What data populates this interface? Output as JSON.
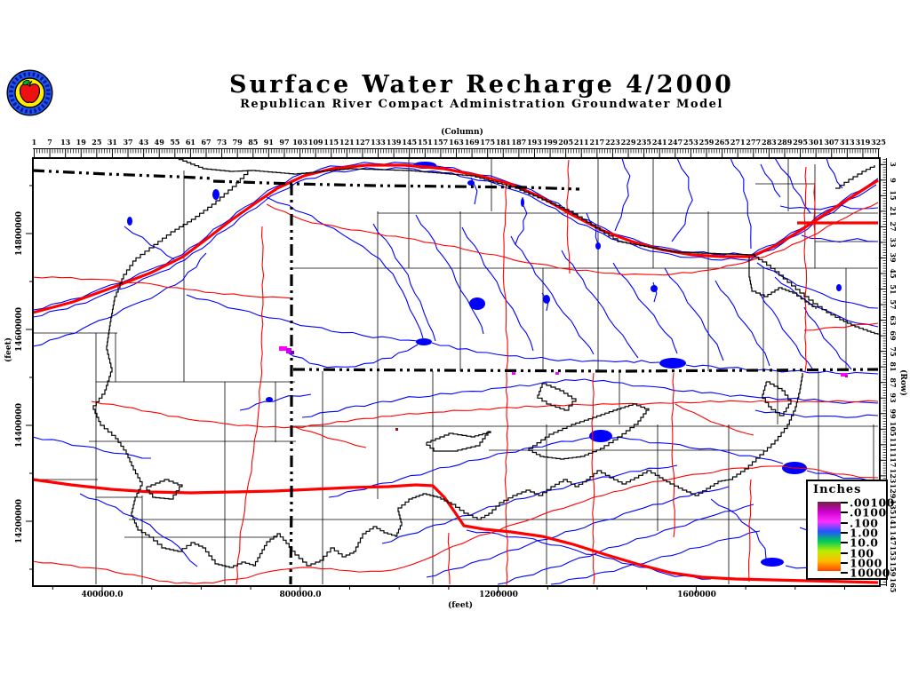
{
  "header": {
    "title": "Surface Water Recharge 4/2000",
    "subtitle": "Republican River Compact Administration Groundwater Model"
  },
  "logo": {
    "name": "rrca-apple-seal"
  },
  "axes": {
    "column": {
      "label": "(Column)",
      "ticks": [
        1,
        7,
        13,
        19,
        25,
        31,
        37,
        43,
        49,
        55,
        61,
        67,
        73,
        79,
        85,
        91,
        97,
        103,
        109,
        115,
        121,
        127,
        133,
        139,
        145,
        151,
        157,
        163,
        169,
        175,
        181,
        187,
        193,
        199,
        205,
        211,
        217,
        223,
        229,
        235,
        241,
        247,
        253,
        259,
        265,
        271,
        277,
        283,
        289,
        295,
        301,
        307,
        313,
        319,
        325
      ]
    },
    "row": {
      "label": "(Row)",
      "ticks": [
        3,
        9,
        15,
        21,
        27,
        33,
        39,
        45,
        51,
        57,
        63,
        69,
        75,
        81,
        87,
        93,
        99,
        105,
        111,
        117,
        123,
        129,
        135,
        141,
        147,
        153,
        159,
        165
      ]
    },
    "left": {
      "label": "(feet)",
      "ticks": [
        "14800000",
        "14600000",
        "14400000",
        "14200000"
      ]
    },
    "bottom": {
      "label": "(feet)",
      "ticks": [
        "400000.0",
        "800000.0",
        "1200000",
        "1600000"
      ]
    }
  },
  "legend": {
    "title": "Inches",
    "entries": [
      {
        "label": ".00100",
        "color": "#70203f"
      },
      {
        "label": ".0100",
        "color": "#cc00cc"
      },
      {
        "label": ".100",
        "color": "#ff30ff"
      },
      {
        "label": "1.00",
        "color": "#2255ff"
      },
      {
        "label": "10.0",
        "color": "#00cc55"
      },
      {
        "label": "100",
        "color": "#bbee00"
      },
      {
        "label": "1000",
        "color": "#ffbb00"
      },
      {
        "label": "10000",
        "color": "#ff4400"
      }
    ]
  },
  "map": {
    "colors": {
      "river": "#0000ff",
      "road": "#ff0000",
      "boundary": "#000000",
      "lake": "#0000ff"
    }
  }
}
